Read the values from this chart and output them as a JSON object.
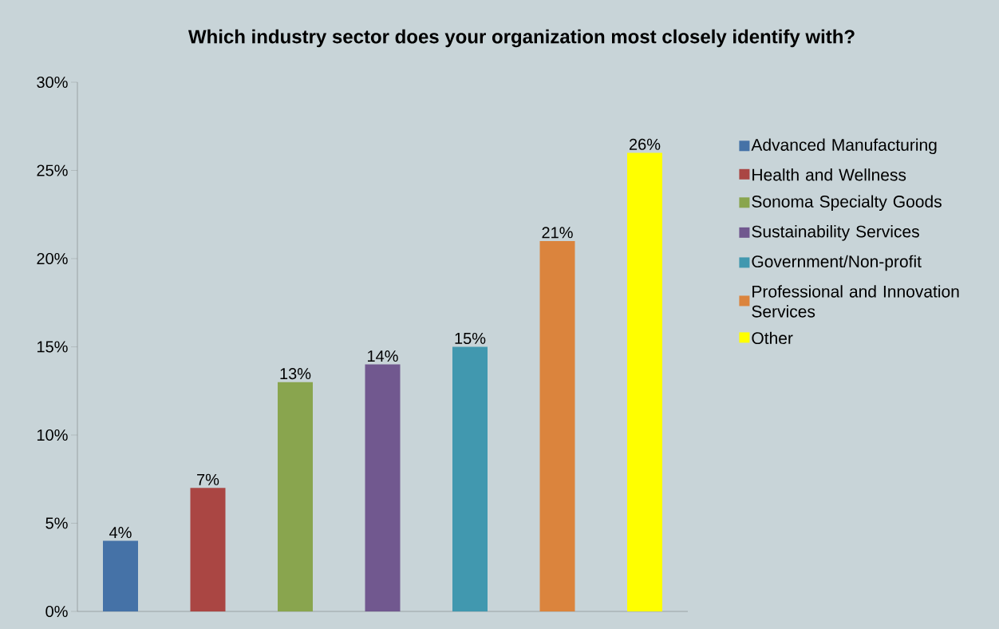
{
  "chart_data": {
    "type": "bar",
    "title": "Which industry sector does your organization most closely identify with?",
    "categories": [
      null
    ],
    "series": [
      {
        "name": "Advanced Manufacturing",
        "color": "#4572a7",
        "values": [
          4
        ],
        "value_labels": [
          "4%"
        ]
      },
      {
        "name": "Health and Wellness",
        "color": "#aa4643",
        "values": [
          7
        ],
        "value_labels": [
          "7%"
        ]
      },
      {
        "name": "Sonoma Specialty Goods",
        "color": "#89a54e",
        "values": [
          13
        ],
        "value_labels": [
          "13%"
        ]
      },
      {
        "name": "Sustainability Services",
        "color": "#71588f",
        "values": [
          14
        ],
        "value_labels": [
          "14%"
        ]
      },
      {
        "name": "Government/Non-profit",
        "color": "#4198af",
        "values": [
          15
        ],
        "value_labels": [
          "15%"
        ]
      },
      {
        "name": "Professional and Innovation Services",
        "color": "#db843d",
        "values": [
          21
        ],
        "value_labels": [
          "21%"
        ]
      },
      {
        "name": "Other",
        "color": "#ffff00",
        "values": [
          26
        ],
        "value_labels": [
          "26%"
        ]
      }
    ],
    "ylim": [
      0,
      30
    ],
    "yticks": [
      {
        "value": 0,
        "label": "0%"
      },
      {
        "value": 5,
        "label": "5%"
      },
      {
        "value": 10,
        "label": "10%"
      },
      {
        "value": 15,
        "label": "15%"
      },
      {
        "value": 20,
        "label": "20%"
      },
      {
        "value": 25,
        "label": "25%"
      },
      {
        "value": 30,
        "label": "30%"
      }
    ],
    "legend": "right"
  }
}
